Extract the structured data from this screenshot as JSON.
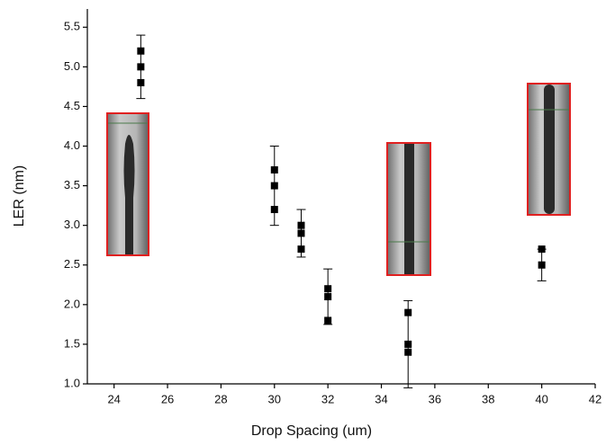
{
  "chart_data": {
    "type": "scatter",
    "x_label": "Drop Spacing (um)",
    "y_label": "LER (nm)",
    "x": [
      25,
      25,
      25,
      30,
      30,
      30,
      31,
      31,
      31,
      32,
      32,
      32,
      35,
      35,
      35,
      40,
      40
    ],
    "values": [
      5.2,
      5.0,
      4.8,
      3.7,
      3.5,
      3.2,
      3.0,
      2.9,
      2.7,
      2.2,
      2.1,
      1.8,
      1.9,
      1.5,
      1.4,
      2.7,
      2.5
    ],
    "errors": [
      null,
      0.4,
      null,
      null,
      0.5,
      null,
      null,
      0.3,
      null,
      null,
      0.35,
      null,
      null,
      0.55,
      null,
      null,
      0.2
    ],
    "color": "#000000",
    "xlim": [
      23,
      42
    ],
    "ylim": [
      1.0,
      5.73
    ],
    "xticks": [
      24,
      26,
      28,
      30,
      32,
      34,
      36,
      38,
      40,
      42
    ],
    "yticks": [
      {
        "value": 1,
        "label": "1.0"
      },
      1.5,
      {
        "value": 2,
        "label": "2.0"
      },
      2.5,
      {
        "value": 3,
        "label": "3.0"
      },
      3.5,
      {
        "value": 4,
        "label": "4.0"
      },
      4.5,
      {
        "value": 5,
        "label": "5.0"
      },
      5.5
    ]
  }
}
